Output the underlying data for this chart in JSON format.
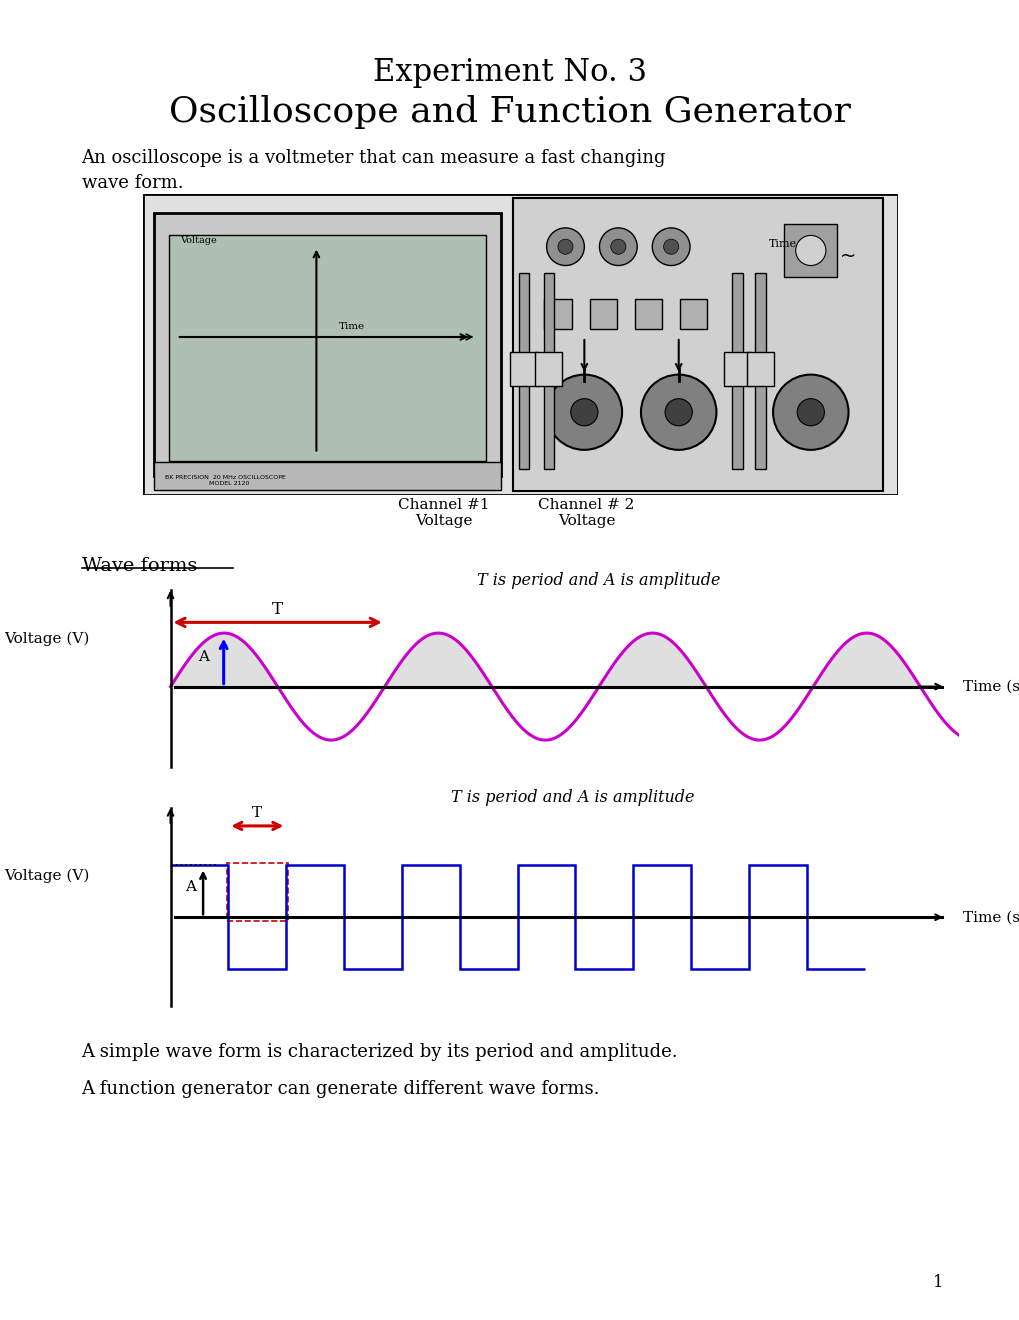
{
  "title_line1": "Experiment No. 3",
  "title_line2": "Oscilloscope and Function Generator",
  "intro_text1": "An oscilloscope is a voltmeter that can measure a fast changing",
  "intro_text2": "wave form.",
  "wave_forms_label": "Wave forms",
  "sine_annotation": "T is period and A is amplitude",
  "square_annotation": "T is period and A is amplitude",
  "sine_xlabel": "Time (s)",
  "sine_ylabel": "Voltage (V)",
  "square_xlabel": "Time (s)",
  "square_ylabel": "Voltage (V)",
  "footer_text1": "A simple wave form is characterized by its period and amplitude.",
  "footer_text2": "A function generator can generate different wave forms.",
  "page_number": "1",
  "sine_color": "#CC00CC",
  "square_color": "#0000CC",
  "arrow_color": "#CC0000",
  "amplitude_arrow_color_sine": "#0000FF",
  "amplitude_arrow_color_square": "#000000",
  "bg_color": "#FFFFFF"
}
